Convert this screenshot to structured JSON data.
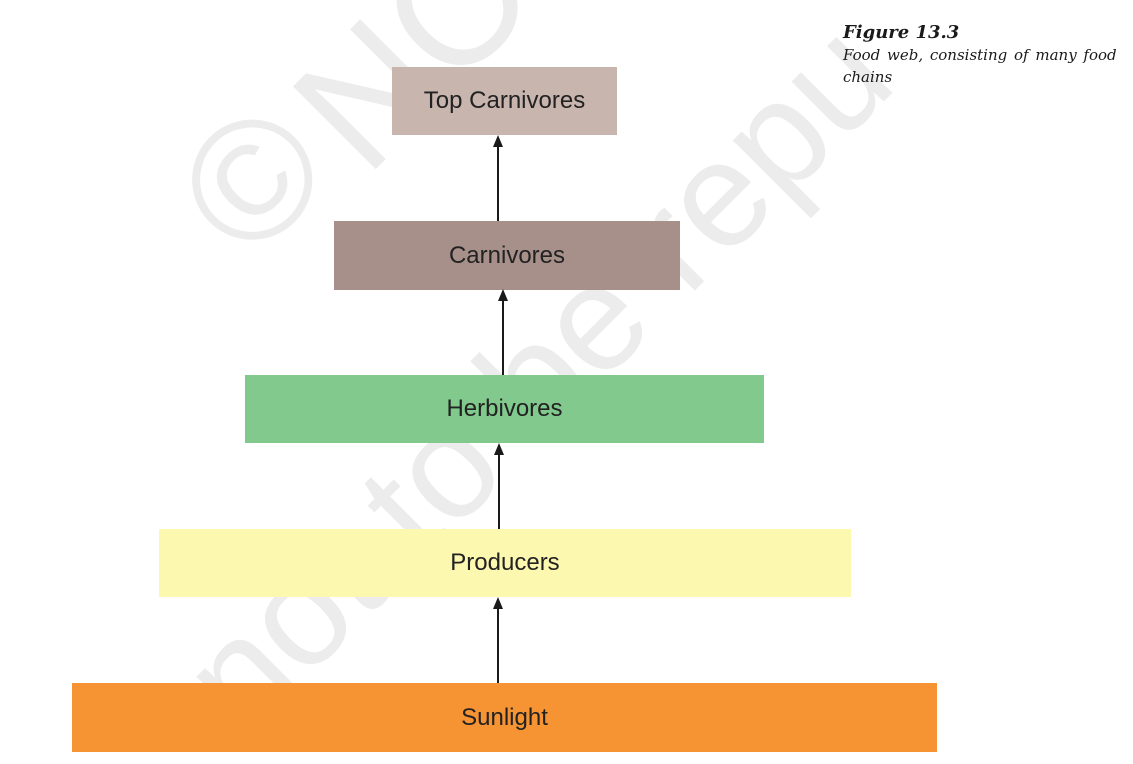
{
  "figure": {
    "label": "Figure 13.3",
    "caption": "Food web, consisting of many food chains"
  },
  "watermark": {
    "symbol": "©",
    "text": "NC",
    "line2": "not to be repu"
  },
  "levels": [
    {
      "label": "Top Carnivores",
      "color": "#c8b5ae"
    },
    {
      "label": "Carnivores",
      "color": "#a79089"
    },
    {
      "label": "Herbivores",
      "color": "#81c98c"
    },
    {
      "label": "Producers",
      "color": "#fdf8b0"
    },
    {
      "label": "Sunlight",
      "color": "#f69434"
    }
  ],
  "arrow_color": "#1a1a1a"
}
